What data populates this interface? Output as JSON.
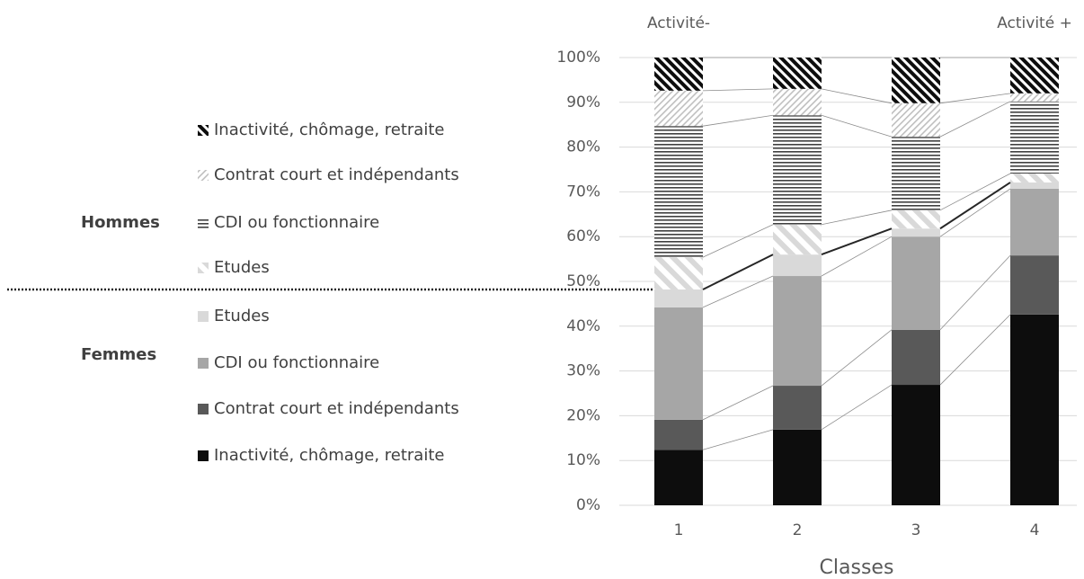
{
  "chart_data": {
    "type": "stacked-bar",
    "annotations": [
      "Activité-",
      "Activité +"
    ],
    "x_label": "Classes",
    "groups": [
      "Femmes",
      "Hommes"
    ],
    "categories": [
      "1",
      "2",
      "3",
      "4"
    ],
    "series": [
      {
        "name": "Inactivité, chômage, retraite",
        "group": 0,
        "color": "#0d0d0d",
        "values": [
          12.4,
          16.9,
          26.9,
          42.6
        ]
      },
      {
        "name": "Contrat court et indépendants",
        "group": 0,
        "color": "#595959",
        "values": [
          6.7,
          9.8,
          12.3,
          13.2
        ]
      },
      {
        "name": "CDI ou fonctionnaire",
        "group": 0,
        "color": "#a6a6a6",
        "values": [
          25.1,
          24.5,
          20.8,
          14.9
        ]
      },
      {
        "name": "Etudes",
        "group": 0,
        "color": "#d9d9d9",
        "values": [
          4.0,
          4.8,
          1.8,
          1.4
        ]
      },
      {
        "name": "Etudes",
        "group": 1,
        "color": "#d9d9d9",
        "pattern": "wide-diagonal",
        "values": [
          7.2,
          6.7,
          4.1,
          2.0
        ]
      },
      {
        "name": "CDI ou fonctionnaire",
        "group": 1,
        "color": "#404040",
        "pattern": "horizontal",
        "values": [
          29.3,
          24.4,
          16.4,
          16.1
        ]
      },
      {
        "name": "Contrat court et indépendants",
        "group": 1,
        "color": "#bfbfbf",
        "pattern": "fine-diagonal",
        "values": [
          7.9,
          5.9,
          7.5,
          1.8
        ]
      },
      {
        "name": "Inactivité, chômage, retraite",
        "group": 1,
        "color": "#0d0d0d",
        "pattern": "dense-diagonal",
        "values": [
          7.4,
          7.0,
          10.2,
          8.0
        ]
      }
    ],
    "ylim": [
      0,
      100
    ],
    "yticks": [
      {
        "value": 0,
        "label": "0%"
      },
      {
        "value": 10,
        "label": "10%"
      },
      {
        "value": 20,
        "label": "20%"
      },
      {
        "value": 30,
        "label": "30%"
      },
      {
        "value": 40,
        "label": "40%"
      },
      {
        "value": 50,
        "label": "50%"
      },
      {
        "value": 60,
        "label": "60%"
      },
      {
        "value": 70,
        "label": "70%"
      },
      {
        "value": 80,
        "label": "80%"
      },
      {
        "value": 90,
        "label": "90%"
      },
      {
        "value": 100,
        "label": "100%"
      }
    ],
    "grid": true
  }
}
